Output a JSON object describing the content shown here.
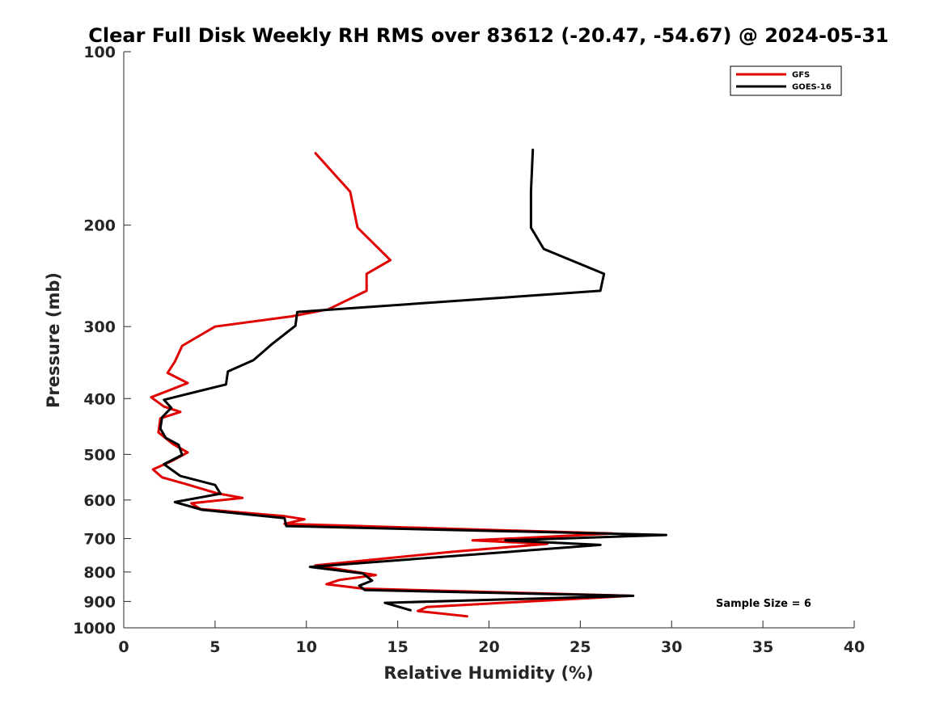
{
  "chart_data": {
    "type": "line",
    "title": "Clear Full Disk Weekly RH RMS over 83612 (-20.47, -54.67) @ 2024-05-31",
    "xlabel": "Relative Humidity (%)",
    "ylabel": "Pressure (mb)",
    "xlim": [
      0,
      40
    ],
    "ylim": [
      100,
      1000
    ],
    "y_scale": "log",
    "y_reversed": true,
    "x_ticks": [
      0,
      5,
      10,
      15,
      20,
      25,
      30,
      35,
      40
    ],
    "y_ticks": [
      100,
      200,
      300,
      400,
      500,
      600,
      700,
      800,
      900,
      1000
    ],
    "grid": false,
    "legend_position": "top-right",
    "annotation": "Sample Size = 6",
    "series": [
      {
        "name": "GFS",
        "color": "#e00000",
        "points": [
          [
            10.5,
            150
          ],
          [
            12.4,
            175
          ],
          [
            12.8,
            202
          ],
          [
            14.6,
            230
          ],
          [
            13.3,
            243
          ],
          [
            13.3,
            260
          ],
          [
            11.2,
            280
          ],
          [
            9.2,
            288
          ],
          [
            5.0,
            300
          ],
          [
            3.2,
            324
          ],
          [
            2.8,
            345
          ],
          [
            2.4,
            361
          ],
          [
            3.5,
            376
          ],
          [
            1.5,
            398
          ],
          [
            2.2,
            413
          ],
          [
            3.1,
            422
          ],
          [
            2.0,
            433
          ],
          [
            1.9,
            458
          ],
          [
            2.7,
            480
          ],
          [
            3.5,
            496
          ],
          [
            2.6,
            514
          ],
          [
            1.6,
            531
          ],
          [
            2.1,
            548
          ],
          [
            3.4,
            563
          ],
          [
            5.1,
            584
          ],
          [
            6.5,
            595
          ],
          [
            3.7,
            608
          ],
          [
            4.2,
            622
          ],
          [
            8.8,
            640
          ],
          [
            9.9,
            648
          ],
          [
            8.8,
            660
          ],
          [
            26.8,
            686
          ],
          [
            19.1,
            705
          ],
          [
            23.2,
            715
          ],
          [
            18.0,
            738
          ],
          [
            10.5,
            779
          ],
          [
            13.8,
            810
          ],
          [
            11.8,
            826
          ],
          [
            11.1,
            840
          ],
          [
            13.1,
            855
          ],
          [
            27.8,
            880
          ],
          [
            16.6,
            920
          ],
          [
            16.1,
            935
          ],
          [
            18.8,
            955
          ]
        ]
      },
      {
        "name": "GOES-16",
        "color": "#000000",
        "points": [
          [
            22.4,
            148
          ],
          [
            22.3,
            175
          ],
          [
            22.3,
            202
          ],
          [
            23.0,
            220
          ],
          [
            26.3,
            243
          ],
          [
            26.1,
            260
          ],
          [
            9.5,
            283
          ],
          [
            9.4,
            299
          ],
          [
            8.1,
            322
          ],
          [
            7.1,
            343
          ],
          [
            5.7,
            359
          ],
          [
            5.6,
            378
          ],
          [
            2.2,
            402
          ],
          [
            2.6,
            415
          ],
          [
            2.1,
            431
          ],
          [
            2.0,
            451
          ],
          [
            2.3,
            468
          ],
          [
            3.0,
            481
          ],
          [
            3.2,
            501
          ],
          [
            2.2,
            520
          ],
          [
            3.1,
            545
          ],
          [
            5.0,
            565
          ],
          [
            5.3,
            585
          ],
          [
            2.8,
            605
          ],
          [
            4.3,
            624
          ],
          [
            8.8,
            645
          ],
          [
            8.9,
            666
          ],
          [
            29.7,
            690
          ],
          [
            20.9,
            705
          ],
          [
            26.1,
            718
          ],
          [
            10.2,
            784
          ],
          [
            13.1,
            805
          ],
          [
            13.6,
            828
          ],
          [
            12.9,
            845
          ],
          [
            13.2,
            860
          ],
          [
            27.9,
            880
          ],
          [
            14.3,
            905
          ],
          [
            15.7,
            932
          ]
        ]
      }
    ]
  }
}
